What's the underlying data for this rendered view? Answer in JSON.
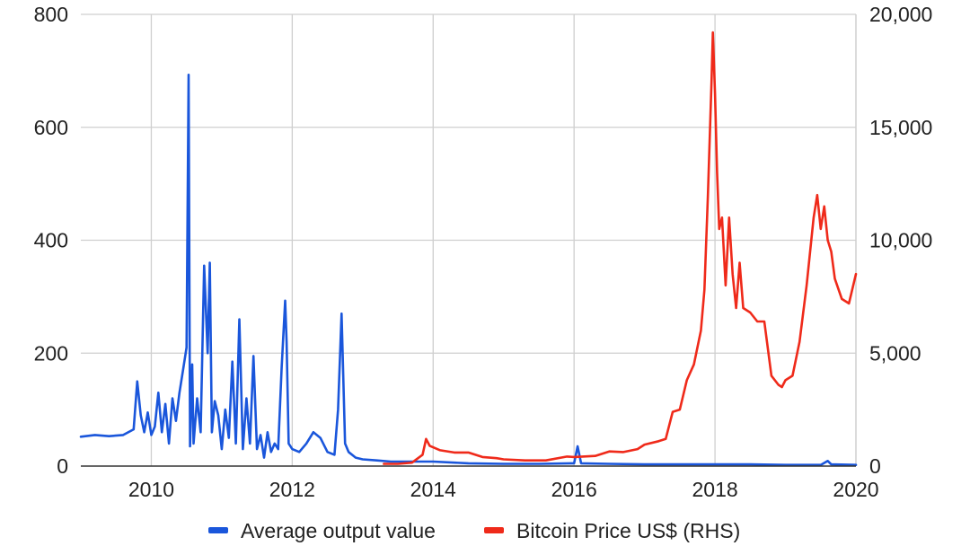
{
  "chart_data": {
    "type": "line",
    "grid": true,
    "legend_position": "bottom",
    "x_axis": {
      "range": [
        2009.0,
        2020.0
      ],
      "ticks": [
        2010,
        2012,
        2014,
        2016,
        2018,
        2020
      ],
      "tick_labels": [
        "2010",
        "2012",
        "2014",
        "2016",
        "2018",
        "2020"
      ]
    },
    "y_axis_left": {
      "range": [
        0,
        800
      ],
      "ticks": [
        0,
        200,
        400,
        600,
        800
      ],
      "tick_labels": [
        "0",
        "200",
        "400",
        "600",
        "800"
      ]
    },
    "y_axis_right": {
      "range": [
        0,
        20000
      ],
      "ticks": [
        0,
        5000,
        10000,
        15000,
        20000
      ],
      "tick_labels": [
        "0",
        "5,000",
        "10,000",
        "15,000",
        "20,000"
      ]
    },
    "series": [
      {
        "name": "Average output value",
        "axis": "left",
        "color": "#1a56db",
        "x": [
          2009.0,
          2009.2,
          2009.4,
          2009.6,
          2009.75,
          2009.8,
          2009.85,
          2009.9,
          2009.95,
          2010.0,
          2010.05,
          2010.1,
          2010.15,
          2010.2,
          2010.25,
          2010.3,
          2010.35,
          2010.4,
          2010.45,
          2010.5,
          2010.53,
          2010.55,
          2010.58,
          2010.6,
          2010.65,
          2010.7,
          2010.75,
          2010.8,
          2010.83,
          2010.86,
          2010.9,
          2010.95,
          2011.0,
          2011.05,
          2011.1,
          2011.15,
          2011.2,
          2011.25,
          2011.3,
          2011.35,
          2011.4,
          2011.45,
          2011.5,
          2011.55,
          2011.6,
          2011.65,
          2011.7,
          2011.75,
          2011.8,
          2011.85,
          2011.9,
          2011.92,
          2011.95,
          2012.0,
          2012.1,
          2012.2,
          2012.3,
          2012.4,
          2012.5,
          2012.6,
          2012.65,
          2012.7,
          2012.75,
          2012.8,
          2012.9,
          2013.0,
          2013.2,
          2013.4,
          2013.6,
          2013.8,
          2014.0,
          2014.5,
          2015.0,
          2015.5,
          2016.0,
          2016.05,
          2016.1,
          2016.5,
          2017.0,
          2017.5,
          2018.0,
          2018.5,
          2019.0,
          2019.5,
          2019.6,
          2019.65,
          2020.0
        ],
        "values": [
          52,
          55,
          53,
          55,
          65,
          150,
          90,
          60,
          95,
          55,
          70,
          130,
          60,
          110,
          40,
          120,
          80,
          130,
          170,
          210,
          693,
          35,
          180,
          40,
          120,
          60,
          355,
          200,
          360,
          60,
          115,
          90,
          30,
          100,
          50,
          185,
          40,
          260,
          30,
          120,
          40,
          195,
          30,
          55,
          15,
          60,
          25,
          40,
          30,
          175,
          293,
          220,
          40,
          30,
          25,
          40,
          60,
          50,
          25,
          20,
          100,
          270,
          40,
          25,
          15,
          12,
          10,
          8,
          8,
          8,
          8,
          5,
          4,
          4,
          5,
          35,
          5,
          4,
          3,
          3,
          3,
          3,
          2,
          2,
          9,
          3,
          2
        ]
      },
      {
        "name": "Bitcoin Price US$ (RHS)",
        "axis": "right",
        "color": "#ef2a1a",
        "x": [
          2013.3,
          2013.5,
          2013.7,
          2013.85,
          2013.9,
          2013.95,
          2014.1,
          2014.3,
          2014.5,
          2014.7,
          2014.9,
          2015.0,
          2015.3,
          2015.6,
          2015.9,
          2016.0,
          2016.3,
          2016.5,
          2016.7,
          2016.9,
          2017.0,
          2017.2,
          2017.3,
          2017.4,
          2017.5,
          2017.6,
          2017.7,
          2017.8,
          2017.85,
          2017.9,
          2017.95,
          2017.97,
          2018.0,
          2018.03,
          2018.06,
          2018.1,
          2018.15,
          2018.2,
          2018.25,
          2018.3,
          2018.35,
          2018.4,
          2018.5,
          2018.6,
          2018.7,
          2018.8,
          2018.9,
          2018.95,
          2019.0,
          2019.1,
          2019.2,
          2019.3,
          2019.4,
          2019.45,
          2019.5,
          2019.55,
          2019.6,
          2019.65,
          2019.7,
          2019.8,
          2019.9,
          2020.0
        ],
        "values": [
          100,
          100,
          150,
          500,
          1200,
          900,
          700,
          600,
          600,
          400,
          350,
          300,
          250,
          250,
          420,
          400,
          450,
          650,
          620,
          750,
          950,
          1100,
          1200,
          2400,
          2500,
          3800,
          4500,
          6000,
          7800,
          12000,
          17000,
          19200,
          16500,
          13000,
          10500,
          11000,
          8000,
          11000,
          8500,
          7000,
          9000,
          7000,
          6800,
          6400,
          6400,
          4000,
          3600,
          3500,
          3800,
          4000,
          5500,
          8000,
          11000,
          12000,
          10500,
          11500,
          10000,
          9500,
          8300,
          7400,
          7200,
          8500
        ]
      }
    ]
  }
}
